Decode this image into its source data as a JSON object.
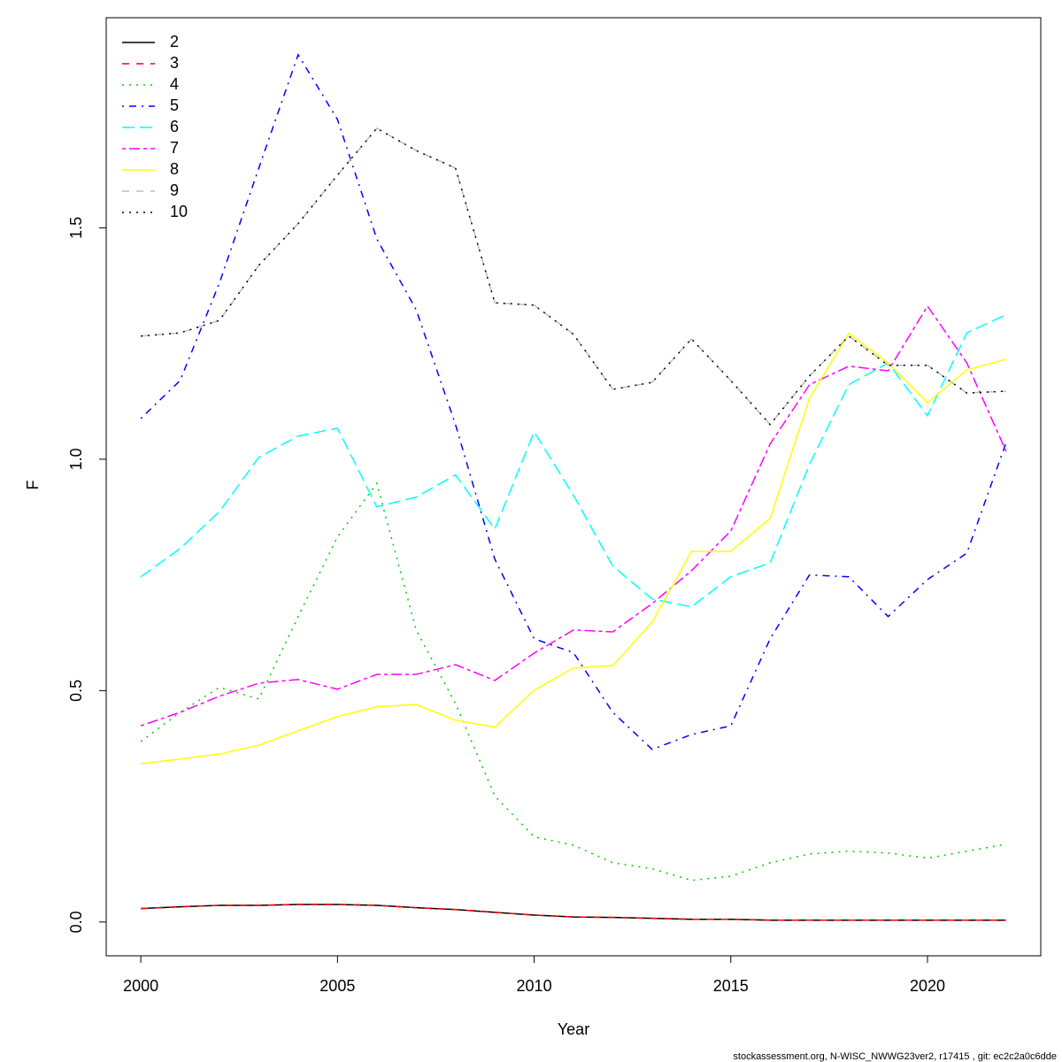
{
  "chart_data": {
    "type": "line",
    "xlabel": "Year",
    "ylabel": "F",
    "footer": "stockassessment.org, N-WISC_NWWG23ver2, r17415 , git: ec2c2a0c6dde",
    "x": [
      2000,
      2001,
      2002,
      2003,
      2004,
      2005,
      2006,
      2007,
      2008,
      2009,
      2010,
      2011,
      2012,
      2013,
      2014,
      2015,
      2016,
      2017,
      2018,
      2019,
      2020,
      2021,
      2022
    ],
    "xlim": [
      1999.12,
      2022.88
    ],
    "xticks": [
      2000,
      2005,
      2010,
      2015,
      2020
    ],
    "ylim": [
      -0.073,
      1.954
    ],
    "yticks": [
      {
        "value": 0,
        "label": "0.0"
      },
      0.5,
      {
        "value": 1,
        "label": "1.0"
      },
      1.5
    ],
    "legend": "top-left",
    "series": [
      {
        "name": "2",
        "color": "#000000",
        "dash": "solid",
        "values": [
          0.029,
          0.033,
          0.036,
          0.036,
          0.038,
          0.038,
          0.036,
          0.031,
          0.027,
          0.021,
          0.015,
          0.011,
          0.01,
          0.008,
          0.006,
          0.006,
          0.004,
          0.004,
          0.004,
          0.004,
          0.004,
          0.004,
          0.004
        ]
      },
      {
        "name": "3",
        "color": "#ff0000",
        "dash": "dashed",
        "values": [
          0.029,
          0.033,
          0.036,
          0.036,
          0.038,
          0.038,
          0.036,
          0.031,
          0.027,
          0.021,
          0.015,
          0.011,
          0.01,
          0.008,
          0.006,
          0.006,
          0.004,
          0.004,
          0.004,
          0.004,
          0.004,
          0.004,
          0.004
        ]
      },
      {
        "name": "4",
        "color": "#00cd00",
        "dash": "dotted",
        "values": [
          0.39,
          0.453,
          0.507,
          0.482,
          0.66,
          0.832,
          0.948,
          0.631,
          0.472,
          0.272,
          0.184,
          0.166,
          0.128,
          0.115,
          0.09,
          0.099,
          0.128,
          0.147,
          0.153,
          0.149,
          0.138,
          0.153,
          0.168
        ]
      },
      {
        "name": "5",
        "color": "#0000ff",
        "dash": "dotdash",
        "values": [
          1.088,
          1.17,
          1.381,
          1.629,
          1.874,
          1.734,
          1.476,
          1.323,
          1.075,
          0.784,
          0.612,
          0.582,
          0.453,
          0.373,
          0.405,
          0.424,
          0.612,
          0.75,
          0.746,
          0.66,
          0.74,
          0.797,
          1.036
        ]
      },
      {
        "name": "6",
        "color": "#00ffff",
        "dash": "longdash",
        "values": [
          0.746,
          0.807,
          0.887,
          1.004,
          1.05,
          1.067,
          0.897,
          0.918,
          0.966,
          0.849,
          1.059,
          0.922,
          0.769,
          0.698,
          0.681,
          0.746,
          0.776,
          0.989,
          1.161,
          1.208,
          1.094,
          1.273,
          1.312
        ]
      },
      {
        "name": "7",
        "color": "#ff00ff",
        "dash": "twodash",
        "values": [
          0.424,
          0.453,
          0.488,
          0.516,
          0.524,
          0.503,
          0.535,
          0.535,
          0.556,
          0.522,
          0.581,
          0.631,
          0.627,
          0.688,
          0.759,
          0.845,
          1.033,
          1.161,
          1.201,
          1.191,
          1.331,
          1.208,
          1.017
        ]
      },
      {
        "name": "8",
        "color": "#ffff00",
        "dash": "solid",
        "values": [
          0.342,
          0.352,
          0.363,
          0.382,
          0.413,
          0.444,
          0.465,
          0.47,
          0.436,
          0.421,
          0.501,
          0.549,
          0.554,
          0.648,
          0.801,
          0.801,
          0.872,
          1.132,
          1.272,
          1.208,
          1.122,
          1.193,
          1.216
        ]
      },
      {
        "name": "9",
        "color": "#bebebe",
        "dash": "dashed",
        "values": [
          1.266,
          1.273,
          1.3,
          1.419,
          1.509,
          1.614,
          1.715,
          1.667,
          1.629,
          1.338,
          1.333,
          1.27,
          1.151,
          1.166,
          1.26,
          1.17,
          1.075,
          1.18,
          1.266,
          1.203,
          1.203,
          1.143,
          1.147
        ]
      },
      {
        "name": "10",
        "color": "#000000",
        "dash": "dotted",
        "values": [
          1.266,
          1.273,
          1.3,
          1.419,
          1.509,
          1.614,
          1.715,
          1.667,
          1.629,
          1.338,
          1.333,
          1.27,
          1.151,
          1.166,
          1.26,
          1.17,
          1.075,
          1.18,
          1.266,
          1.203,
          1.203,
          1.143,
          1.147
        ]
      }
    ]
  }
}
